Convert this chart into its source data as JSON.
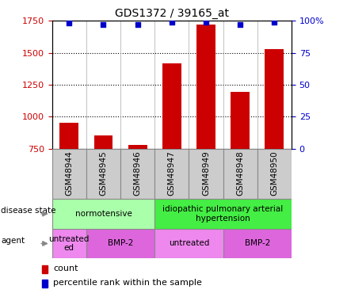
{
  "title": "GDS1372 / 39165_at",
  "samples": [
    "GSM48944",
    "GSM48945",
    "GSM48946",
    "GSM48947",
    "GSM48949",
    "GSM48948",
    "GSM48950"
  ],
  "bar_values": [
    950,
    855,
    775,
    1415,
    1720,
    1195,
    1530
  ],
  "percentile_values": [
    98,
    97,
    97,
    99,
    99,
    97,
    99
  ],
  "ylim_left": [
    750,
    1750
  ],
  "ylim_right": [
    0,
    100
  ],
  "yticks_left": [
    750,
    1000,
    1250,
    1500,
    1750
  ],
  "yticks_right": [
    0,
    25,
    50,
    75,
    100
  ],
  "bar_color": "#cc0000",
  "dot_color": "#0000cc",
  "background_color": "#ffffff",
  "tick_box_color": "#cccccc",
  "disease_groups": [
    {
      "label": "normotensive",
      "start": 0,
      "end": 2,
      "color": "#aaffaa"
    },
    {
      "label": "idiopathic pulmonary arterial\nhypertension",
      "start": 3,
      "end": 6,
      "color": "#44ee44"
    }
  ],
  "agent_groups": [
    {
      "label": "untreated\ned",
      "start": 0,
      "end": 0,
      "color": "#ee88ee"
    },
    {
      "label": "BMP-2",
      "start": 1,
      "end": 2,
      "color": "#dd66dd"
    },
    {
      "label": "untreated",
      "start": 3,
      "end": 4,
      "color": "#ee88ee"
    },
    {
      "label": "BMP-2",
      "start": 5,
      "end": 6,
      "color": "#dd66dd"
    }
  ],
  "legend_count_label": "count",
  "legend_percentile_label": "percentile rank within the sample",
  "axis_color_left": "#cc0000",
  "axis_color_right": "#0000cc",
  "label_disease": "disease state",
  "label_agent": "agent"
}
